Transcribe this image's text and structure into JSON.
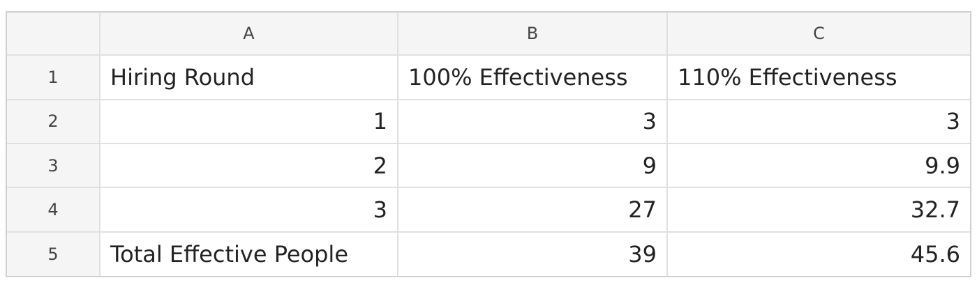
{
  "columns": [
    "A",
    "B",
    "C"
  ],
  "rows": [
    {
      "num": "1",
      "cells": [
        "Hiring Round",
        "100% Effectiveness",
        "110% Effectiveness"
      ],
      "align": [
        "text",
        "text",
        "text"
      ]
    },
    {
      "num": "2",
      "cells": [
        "1",
        "3",
        "3"
      ],
      "align": [
        "num",
        "num",
        "num"
      ]
    },
    {
      "num": "3",
      "cells": [
        "2",
        "9",
        "9.9"
      ],
      "align": [
        "num",
        "num",
        "num"
      ]
    },
    {
      "num": "4",
      "cells": [
        "3",
        "27",
        "32.7"
      ],
      "align": [
        "num",
        "num",
        "num"
      ]
    },
    {
      "num": "5",
      "cells": [
        "Total Effective People",
        "39",
        "45.6"
      ],
      "align": [
        "text",
        "num",
        "num"
      ]
    }
  ]
}
